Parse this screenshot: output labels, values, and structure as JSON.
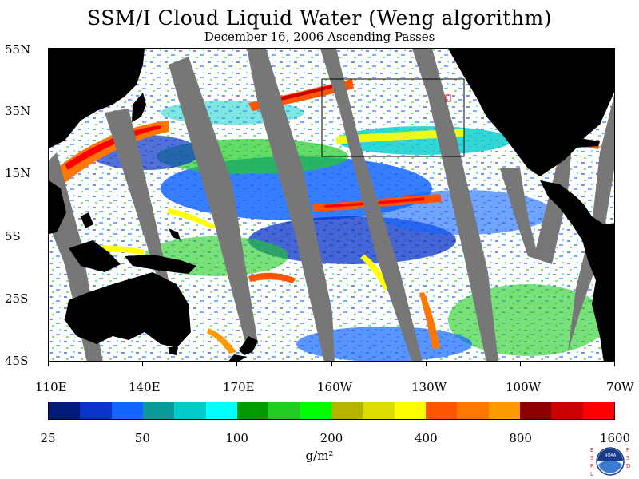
{
  "title": "SSM/I Cloud Liquid Water (Weng algorithm)",
  "subtitle": "December 16, 2006  Ascending Passes",
  "lat_labels": [
    "55N",
    "35N",
    "15N",
    "5S",
    "25S",
    "45S"
  ],
  "lon_labels": [
    "110E",
    "140E",
    "170E",
    "160W",
    "130W",
    "100W",
    "70W"
  ],
  "colorbar": {
    "colors": [
      "#001a7a",
      "#0a33c8",
      "#1466ff",
      "#0a9a9a",
      "#00cccc",
      "#00ffff",
      "#009900",
      "#22cc22",
      "#00ff00",
      "#b3b300",
      "#dddd00",
      "#ffff00",
      "#ff5500",
      "#ff7700",
      "#ff9900",
      "#8b0000",
      "#cc0000",
      "#ff0000"
    ],
    "ticks": [
      "25",
      "50",
      "100",
      "200",
      "400",
      "800",
      "1600"
    ]
  },
  "units": "g/m²",
  "logo": {
    "left_text": "ESRL",
    "right_text": "PSD",
    "center": "NOAA"
  },
  "map_colors": {
    "land": "#000000",
    "swath_gap": "#777777",
    "no_cloud": "#ffffff"
  }
}
